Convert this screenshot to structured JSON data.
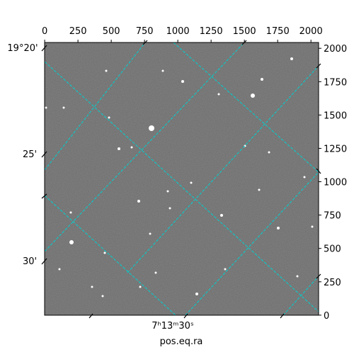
{
  "chart_data": {
    "type": "image",
    "xlabel": "pos.eq.ra",
    "xlim": [
      -0.5,
      2057.5
    ],
    "xticks": [
      0,
      250,
      500,
      750,
      1000,
      1250,
      1500,
      1750,
      2000
    ],
    "ylim": [
      -0.5,
      2043.5
    ],
    "yticks": [
      0,
      250,
      500,
      750,
      1000,
      1250,
      1500,
      1750,
      2000
    ],
    "dec_labels": [
      "19°20'",
      "25'",
      "30'"
    ],
    "ra_labels": [
      "7ʰ13ᵐ30ˢ"
    ],
    "grid_color": "#00d0d0"
  }
}
